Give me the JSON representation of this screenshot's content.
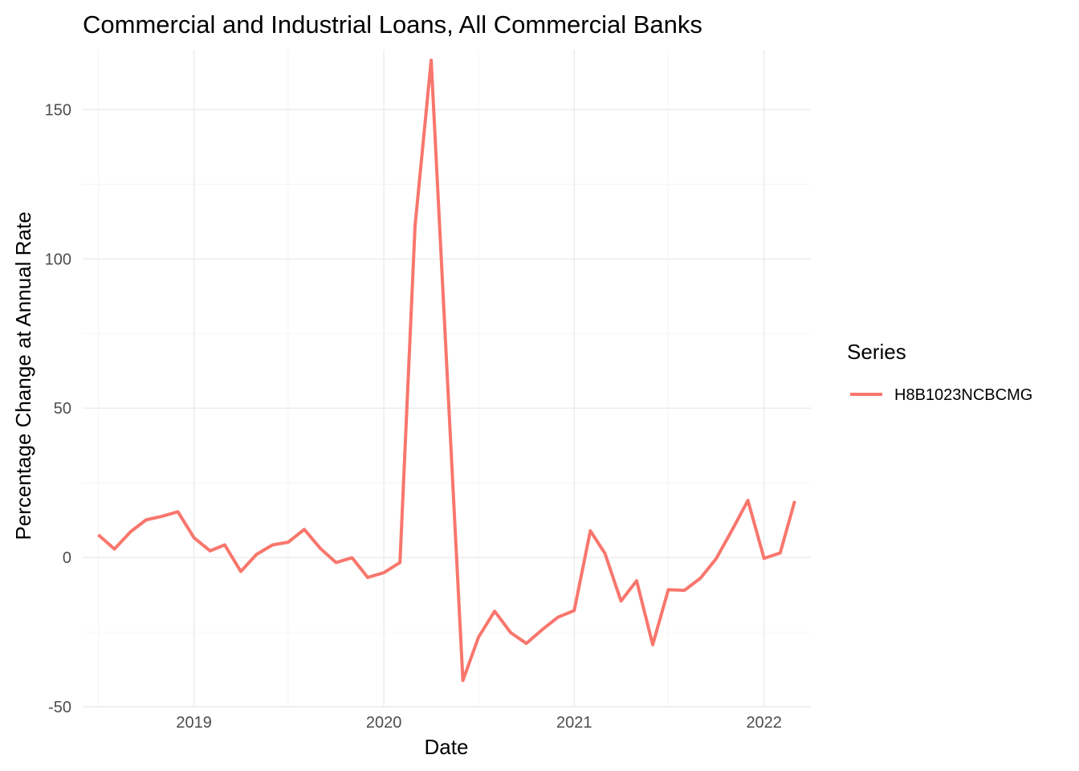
{
  "chart_data": {
    "type": "line",
    "title": "Commercial and Industrial Loans, All Commercial Banks",
    "xlabel": "Date",
    "ylabel": "Percentage Change at Annual Rate",
    "xlim": [
      "2018-06-01",
      "2022-04-01"
    ],
    "ylim": [
      -50,
      170
    ],
    "x_ticks": [
      "2019",
      "2020",
      "2021",
      "2022"
    ],
    "y_ticks": [
      -50,
      0,
      50,
      100,
      150
    ],
    "grid": true,
    "legend": {
      "title": "Series",
      "position": "right"
    },
    "series": [
      {
        "name": "H8B1023NCBCMG",
        "color": "#F8766D",
        "points": [
          [
            "2018-07-01",
            7.6
          ],
          [
            "2018-08-01",
            2.8
          ],
          [
            "2018-09-01",
            8.6
          ],
          [
            "2018-10-01",
            12.6
          ],
          [
            "2018-11-01",
            13.8
          ],
          [
            "2018-12-01",
            15.3
          ],
          [
            "2019-01-01",
            6.6
          ],
          [
            "2019-02-01",
            2.2
          ],
          [
            "2019-03-01",
            4.2
          ],
          [
            "2019-04-01",
            -4.7
          ],
          [
            "2019-05-01",
            1.0
          ],
          [
            "2019-06-01",
            4.2
          ],
          [
            "2019-07-01",
            5.1
          ],
          [
            "2019-08-01",
            9.4
          ],
          [
            "2019-09-01",
            3.0
          ],
          [
            "2019-10-01",
            -1.7
          ],
          [
            "2019-11-01",
            -0.1
          ],
          [
            "2019-12-01",
            -6.7
          ],
          [
            "2020-01-01",
            -5.1
          ],
          [
            "2020-02-01",
            -1.7
          ],
          [
            "2020-03-01",
            111.0
          ],
          [
            "2020-04-01",
            166.5
          ],
          [
            "2020-05-01",
            64.0
          ],
          [
            "2020-06-01",
            -41.2
          ],
          [
            "2020-07-01",
            -26.7
          ],
          [
            "2020-08-01",
            -18.0
          ],
          [
            "2020-09-01",
            -25.2
          ],
          [
            "2020-10-01",
            -28.8
          ],
          [
            "2020-11-01",
            -24.1
          ],
          [
            "2020-12-01",
            -20.0
          ],
          [
            "2021-01-01",
            -17.8
          ],
          [
            "2021-02-01",
            8.9
          ],
          [
            "2021-03-01",
            1.4
          ],
          [
            "2021-04-01",
            -14.6
          ],
          [
            "2021-05-01",
            -7.8
          ],
          [
            "2021-06-01",
            -29.2
          ],
          [
            "2021-07-01",
            -10.8
          ],
          [
            "2021-08-01",
            -11.0
          ],
          [
            "2021-09-01",
            -6.9
          ],
          [
            "2021-10-01",
            -0.4
          ],
          [
            "2021-11-01",
            9.3
          ],
          [
            "2021-12-01",
            19.1
          ],
          [
            "2022-01-01",
            -0.3
          ],
          [
            "2022-02-01",
            1.5
          ],
          [
            "2022-03-01",
            18.9
          ]
        ]
      }
    ]
  }
}
